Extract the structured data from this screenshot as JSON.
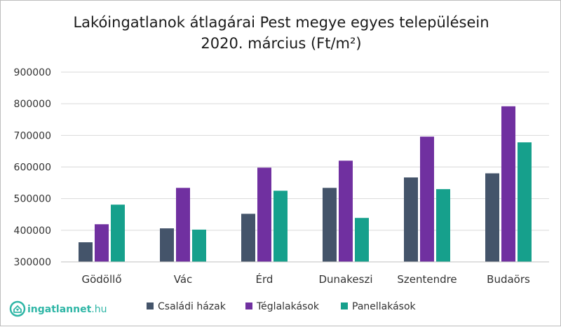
{
  "logo": {
    "text_main": "ingatlannet",
    "text_tld": ".hu",
    "color": "#2fb6a6"
  },
  "chart_data": {
    "type": "bar",
    "title": "Lakóingatlanok átlagárai Pest megye egyes településein",
    "subtitle": "2020. március (Ft/m²)",
    "xlabel": "",
    "ylabel": "",
    "ylim": [
      300000,
      900000
    ],
    "yticks": [
      "300000",
      "400000",
      "500000",
      "600000",
      "700000",
      "800000",
      "900000"
    ],
    "grid": true,
    "legend_position": "bottom",
    "categories": [
      "Gödöllő",
      "Vác",
      "Érd",
      "Dunakeszi",
      "Szentendre",
      "Budaörs"
    ],
    "series": [
      {
        "name": "Családi házak",
        "color": "#44546a",
        "values": [
          362000,
          406000,
          452000,
          534000,
          567000,
          580000
        ]
      },
      {
        "name": "Téglalakások",
        "color": "#7030a0",
        "values": [
          419000,
          534000,
          598000,
          620000,
          696000,
          792000
        ]
      },
      {
        "name": "Panellakások",
        "color": "#16a08c",
        "values": [
          481000,
          402000,
          525000,
          439000,
          530000,
          678000
        ]
      }
    ]
  }
}
